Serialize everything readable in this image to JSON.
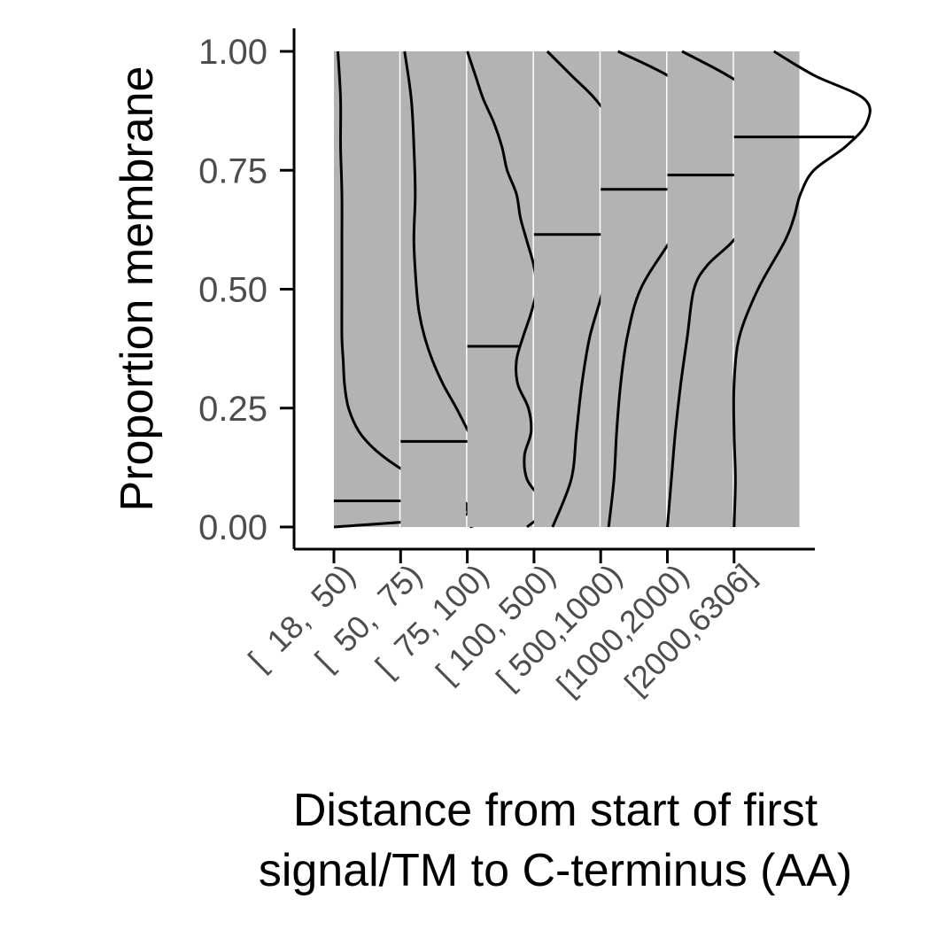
{
  "chart_data": {
    "type": "violin",
    "ylabel": "Proportion membrane",
    "xlabel_lines": [
      "Distance from start of first",
      "signal/TM to C-terminus (AA)"
    ],
    "categories": [
      "[  18,  50)",
      "[  50,  75)",
      "[  75, 100)",
      "[ 100, 500)",
      "[ 500,1000)",
      "[1000,2000)",
      "[2000,6306]"
    ],
    "yticks": [
      "0.00",
      "0.25",
      "0.50",
      "0.75",
      "1.00"
    ],
    "ylim": [
      0,
      1
    ],
    "fill_color": "#b3b3b3",
    "medians": [
      0.055,
      0.18,
      0.38,
      0.615,
      0.71,
      0.74,
      0.82
    ],
    "density_profiles": [
      [
        [
          0.0,
          0.0
        ],
        [
          0.02,
          0.9
        ],
        [
          0.04,
          1.0
        ],
        [
          0.055,
          0.97
        ],
        [
          0.08,
          0.8
        ],
        [
          0.12,
          0.52
        ],
        [
          0.16,
          0.32
        ],
        [
          0.2,
          0.19
        ],
        [
          0.25,
          0.11
        ],
        [
          0.3,
          0.08
        ],
        [
          0.35,
          0.07
        ],
        [
          0.4,
          0.06
        ],
        [
          0.5,
          0.06
        ],
        [
          0.6,
          0.06
        ],
        [
          0.7,
          0.06
        ],
        [
          0.8,
          0.05
        ],
        [
          0.9,
          0.05
        ],
        [
          1.0,
          0.03
        ]
      ],
      [
        [
          0.0,
          0.52
        ],
        [
          0.02,
          0.72
        ],
        [
          0.05,
          0.78
        ],
        [
          0.08,
          0.76
        ],
        [
          0.12,
          0.68
        ],
        [
          0.18,
          0.55
        ],
        [
          0.25,
          0.42
        ],
        [
          0.3,
          0.32
        ],
        [
          0.35,
          0.24
        ],
        [
          0.4,
          0.18
        ],
        [
          0.45,
          0.14
        ],
        [
          0.5,
          0.12
        ],
        [
          0.6,
          0.1
        ],
        [
          0.7,
          0.11
        ],
        [
          0.8,
          0.1
        ],
        [
          0.9,
          0.08
        ],
        [
          1.0,
          0.03
        ]
      ],
      [
        [
          0.0,
          0.45
        ],
        [
          0.03,
          0.57
        ],
        [
          0.06,
          0.55
        ],
        [
          0.1,
          0.45
        ],
        [
          0.15,
          0.43
        ],
        [
          0.2,
          0.48
        ],
        [
          0.25,
          0.46
        ],
        [
          0.3,
          0.38
        ],
        [
          0.35,
          0.37
        ],
        [
          0.4,
          0.42
        ],
        [
          0.45,
          0.48
        ],
        [
          0.5,
          0.52
        ],
        [
          0.55,
          0.5
        ],
        [
          0.6,
          0.45
        ],
        [
          0.65,
          0.4
        ],
        [
          0.7,
          0.37
        ],
        [
          0.75,
          0.3
        ],
        [
          0.8,
          0.26
        ],
        [
          0.85,
          0.2
        ],
        [
          0.9,
          0.12
        ],
        [
          0.95,
          0.06
        ],
        [
          1.0,
          0.0
        ]
      ],
      [
        [
          0.0,
          0.14
        ],
        [
          0.1,
          0.28
        ],
        [
          0.2,
          0.32
        ],
        [
          0.3,
          0.36
        ],
        [
          0.4,
          0.42
        ],
        [
          0.5,
          0.52
        ],
        [
          0.6,
          0.58
        ],
        [
          0.7,
          0.62
        ],
        [
          0.78,
          0.64
        ],
        [
          0.85,
          0.58
        ],
        [
          0.9,
          0.46
        ],
        [
          0.95,
          0.28
        ],
        [
          1.0,
          0.1
        ]
      ],
      [
        [
          0.0,
          0.06
        ],
        [
          0.1,
          0.1
        ],
        [
          0.2,
          0.12
        ],
        [
          0.3,
          0.15
        ],
        [
          0.4,
          0.2
        ],
        [
          0.5,
          0.3
        ],
        [
          0.6,
          0.52
        ],
        [
          0.7,
          0.74
        ],
        [
          0.78,
          0.87
        ],
        [
          0.84,
          0.86
        ],
        [
          0.9,
          0.74
        ],
        [
          0.95,
          0.5
        ],
        [
          1.0,
          0.13
        ]
      ],
      [
        [
          0.0,
          0.0
        ],
        [
          0.1,
          0.03
        ],
        [
          0.2,
          0.06
        ],
        [
          0.3,
          0.1
        ],
        [
          0.4,
          0.15
        ],
        [
          0.5,
          0.2
        ],
        [
          0.55,
          0.3
        ],
        [
          0.6,
          0.49
        ],
        [
          0.65,
          0.62
        ],
        [
          0.7,
          0.67
        ],
        [
          0.75,
          0.73
        ],
        [
          0.8,
          0.85
        ],
        [
          0.85,
          0.85
        ],
        [
          0.9,
          0.72
        ],
        [
          0.95,
          0.45
        ],
        [
          1.0,
          0.11
        ]
      ],
      [
        [
          0.0,
          0.0
        ],
        [
          0.1,
          0.01
        ],
        [
          0.2,
          0.0
        ],
        [
          0.3,
          0.0
        ],
        [
          0.4,
          0.04
        ],
        [
          0.5,
          0.18
        ],
        [
          0.6,
          0.38
        ],
        [
          0.65,
          0.45
        ],
        [
          0.7,
          0.5
        ],
        [
          0.75,
          0.6
        ],
        [
          0.8,
          0.84
        ],
        [
          0.85,
          1.0
        ],
        [
          0.9,
          0.98
        ],
        [
          0.95,
          0.6
        ],
        [
          1.0,
          0.3
        ]
      ]
    ]
  }
}
